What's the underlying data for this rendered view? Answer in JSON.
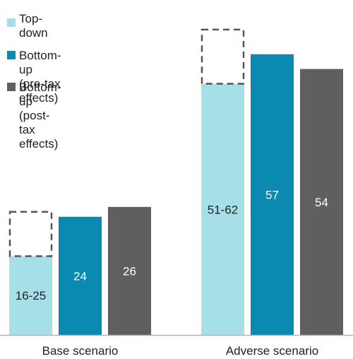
{
  "chart_data": {
    "type": "bar",
    "categories": [
      "Base scenario",
      "Adverse scenario"
    ],
    "series": [
      {
        "name": "Top-down",
        "values": [
          16,
          51
        ],
        "range_high": [
          25,
          62
        ],
        "labels": [
          "16-25",
          "51-62"
        ],
        "color": "#a6dfe8",
        "label_color": "#222222",
        "range_box": "dashed"
      },
      {
        "name": "Bottom-up\n(pre-tax effects)",
        "values": [
          24,
          57
        ],
        "labels": [
          "24",
          "57"
        ],
        "color": "#0b8ab1",
        "label_color": "#ffffff"
      },
      {
        "name": "Bottom-up\n(post-tax effects)",
        "values": [
          26,
          54
        ],
        "labels": [
          "26",
          "54"
        ],
        "color": "#5f5f5f",
        "label_color": "#ffffff"
      }
    ],
    "ylim": [
      0,
      66
    ],
    "grid": false,
    "legend_position": "top-left",
    "baseline_color": "#b5b5b5",
    "range_box_color": "#555555"
  }
}
